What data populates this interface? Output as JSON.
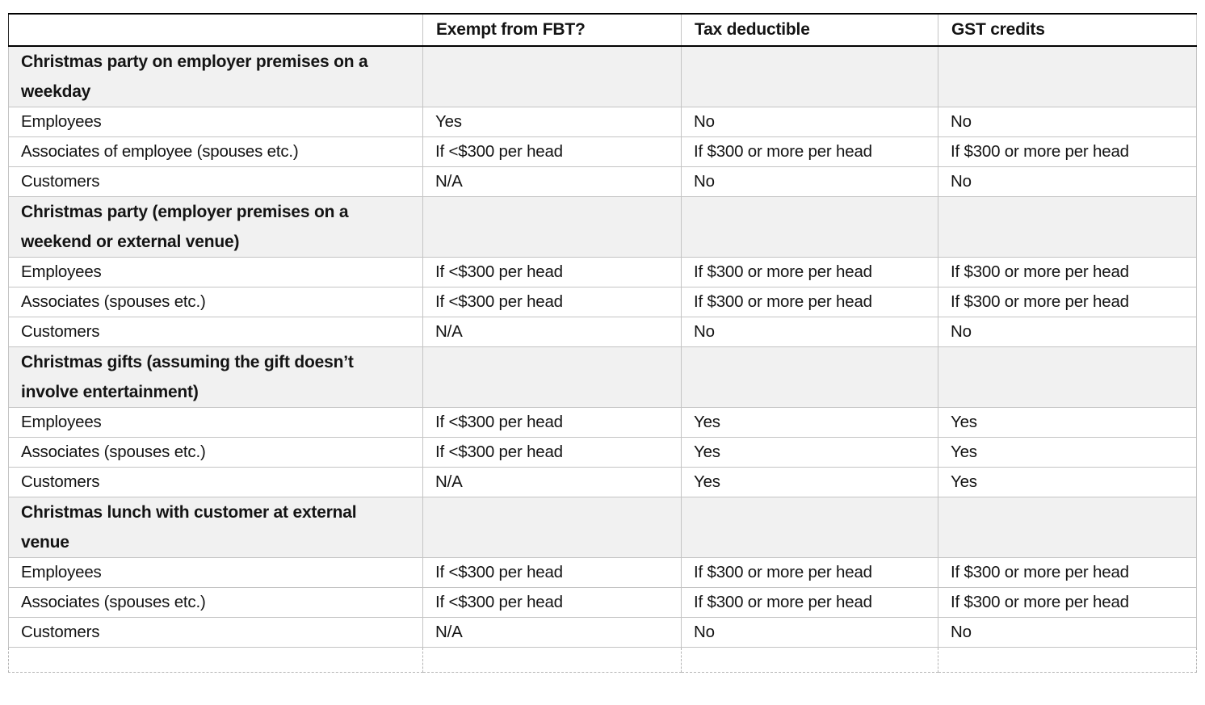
{
  "table": {
    "columns": [
      "",
      "Exempt from FBT?",
      "Tax deductible",
      "GST credits"
    ],
    "sections": [
      {
        "title": "Christmas party on employer premises on a weekday",
        "rows": [
          {
            "label": "Employees",
            "values": [
              "Yes",
              "No",
              "No"
            ]
          },
          {
            "label": "Associates of employee (spouses etc.)",
            "values": [
              "If <$300 per head",
              "If $300 or more per head",
              "If $300 or more per head"
            ]
          },
          {
            "label": "Customers",
            "values": [
              "N/A",
              "No",
              "No"
            ]
          }
        ]
      },
      {
        "title": "Christmas party (employer premises on a weekend or external venue)",
        "rows": [
          {
            "label": "Employees",
            "values": [
              "If <$300 per head",
              "If $300 or more per head",
              "If $300 or more per head"
            ]
          },
          {
            "label": "Associates (spouses etc.)",
            "values": [
              "If <$300 per head",
              "If $300 or more per head",
              "If $300 or more per head"
            ]
          },
          {
            "label": "Customers",
            "values": [
              "N/A",
              "No",
              "No"
            ]
          }
        ]
      },
      {
        "title": "Christmas gifts (assuming the gift doesn’t involve entertainment)",
        "rows": [
          {
            "label": "Employees",
            "values": [
              "If <$300 per head",
              "Yes",
              "Yes"
            ]
          },
          {
            "label": "Associates (spouses etc.)",
            "values": [
              "If <$300 per head",
              "Yes",
              "Yes"
            ]
          },
          {
            "label": "Customers",
            "values": [
              "N/A",
              "Yes",
              "Yes"
            ]
          }
        ]
      },
      {
        "title": "Christmas lunch with customer at external venue",
        "rows": [
          {
            "label": "Employees",
            "values": [
              "If <$300 per head",
              "If $300 or more per head",
              "If $300 or more per head"
            ]
          },
          {
            "label": "Associates (spouses etc.)",
            "values": [
              "If <$300 per head",
              "If $300 or more per head",
              "If $300 or more per head"
            ]
          },
          {
            "label": "Customers",
            "values": [
              "N/A",
              "No",
              "No"
            ]
          }
        ]
      }
    ],
    "empty_row": [
      "",
      "",
      "",
      ""
    ],
    "colors": {
      "section_bg": "#f1f1f1",
      "grid_line": "#c4c4c4",
      "header_border": "#000000",
      "dashed_line": "#b5b5b5",
      "text": "#141414",
      "page_bg": "#ffffff"
    }
  }
}
